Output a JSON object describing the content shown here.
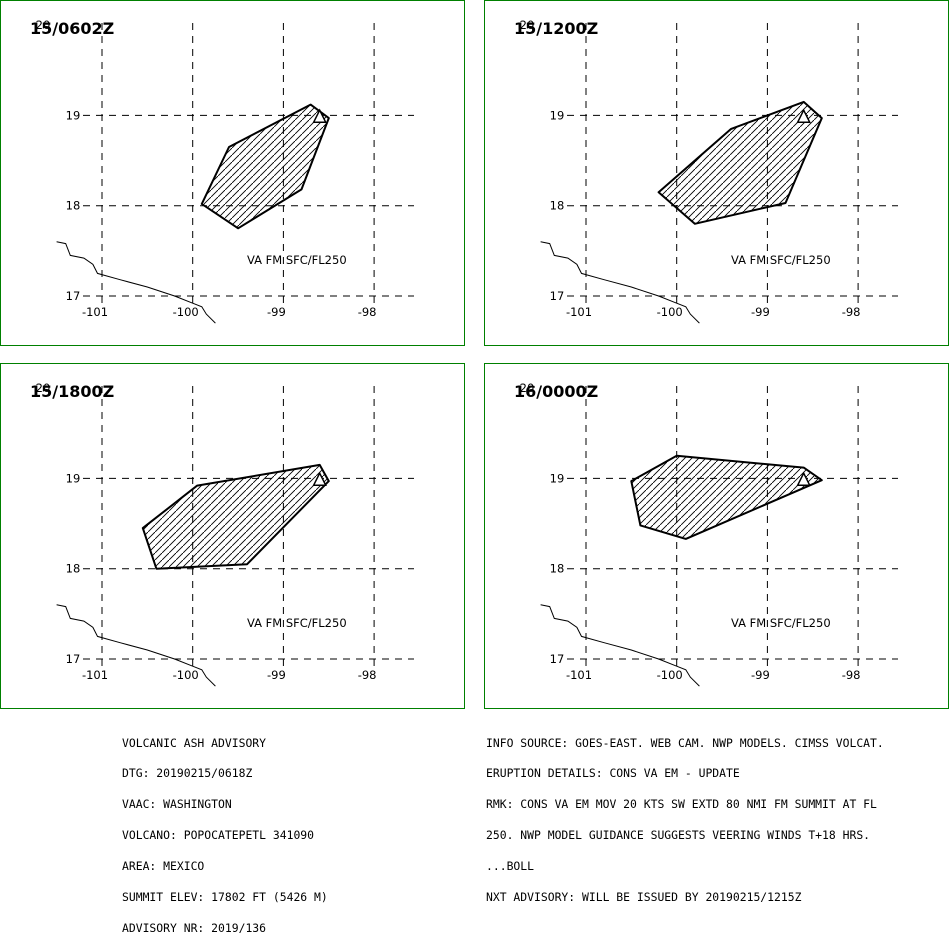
{
  "panels": [
    {
      "time": "15/0602Z",
      "label": "VA FM SFC/FL250",
      "polygon": [
        [
          -98.7,
          19.12
        ],
        [
          -98.5,
          18.97
        ],
        [
          -98.8,
          18.18
        ],
        [
          -99.5,
          17.75
        ],
        [
          -99.9,
          18.02
        ],
        [
          -99.6,
          18.65
        ]
      ]
    },
    {
      "time": "15/1200Z",
      "label": "VA FM SFC/FL250",
      "polygon": [
        [
          -98.6,
          19.15
        ],
        [
          -98.4,
          18.97
        ],
        [
          -98.8,
          18.03
        ],
        [
          -99.8,
          17.8
        ],
        [
          -100.2,
          18.15
        ],
        [
          -99.4,
          18.85
        ]
      ]
    },
    {
      "time": "15/1800Z",
      "label": "VA FM SFC/FL250",
      "polygon": [
        [
          -98.6,
          19.15
        ],
        [
          -98.5,
          18.97
        ],
        [
          -99.4,
          18.05
        ],
        [
          -100.4,
          18.0
        ],
        [
          -100.55,
          18.45
        ],
        [
          -99.95,
          18.92
        ]
      ]
    },
    {
      "time": "16/0000Z",
      "label": "VA FM SFC/FL250",
      "polygon": [
        [
          -98.6,
          19.12
        ],
        [
          -98.4,
          18.98
        ],
        [
          -99.9,
          18.33
        ],
        [
          -100.4,
          18.48
        ],
        [
          -100.5,
          18.97
        ],
        [
          -100.0,
          19.25
        ]
      ]
    }
  ],
  "axes": {
    "lon_ticks": [
      "-101",
      "-100",
      "-99",
      "-98"
    ],
    "lat_ticks": [
      "20",
      "19",
      "18",
      "17"
    ]
  },
  "volcano_lonlat": [
    -98.6,
    18.98
  ],
  "coastline": [
    [
      -101.5,
      17.6
    ],
    [
      -101.4,
      17.58
    ],
    [
      -101.35,
      17.45
    ],
    [
      -101.2,
      17.42
    ],
    [
      -101.1,
      17.35
    ],
    [
      -101.05,
      17.25
    ],
    [
      -100.8,
      17.18
    ],
    [
      -100.5,
      17.1
    ],
    [
      -100.2,
      17.0
    ],
    [
      -100.0,
      16.92
    ],
    [
      -99.9,
      16.88
    ],
    [
      -99.85,
      16.8
    ],
    [
      -99.75,
      16.7
    ]
  ],
  "footer_left": [
    "VOLCANIC ASH ADVISORY",
    "DTG: 20190215/0618Z",
    "VAAC: WASHINGTON",
    "VOLCANO: POPOCATEPETL 341090",
    "AREA: MEXICO",
    "SUMMIT ELEV: 17802 FT (5426 M)",
    "ADVISORY NR: 2019/136"
  ],
  "footer_right": [
    "INFO SOURCE: GOES-EAST. WEB CAM. NWP MODELS. CIMSS VOLCAT.",
    "ERUPTION DETAILS: CONS VA EM - UPDATE",
    "RMK: CONS VA EM MOV 20 KTS SW EXTD 80 NMI FM SUMMIT AT FL",
    "250. NWP MODEL GUIDANCE SUGGESTS VEERING WINDS T+18 HRS.",
    "...BOLL",
    "NXT ADVISORY: WILL BE ISSUED BY 20190215/1215Z"
  ],
  "colors": {
    "frame": "#008000",
    "lines": "#000000",
    "background": "#ffffff"
  }
}
